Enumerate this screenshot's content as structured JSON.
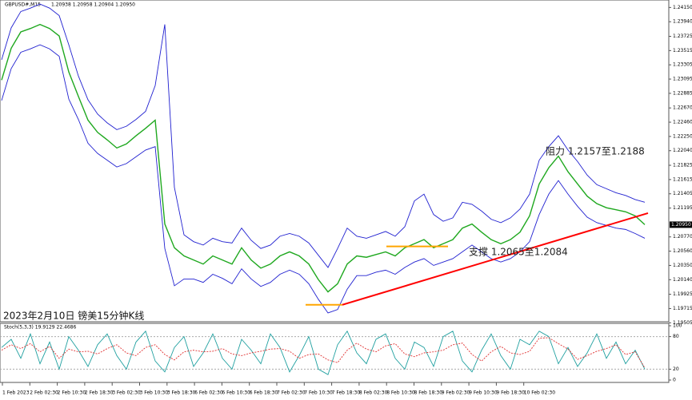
{
  "header": {
    "symbol": "GBPUSD#,M15",
    "quote": "1.20938 1.20958 1.20904 1.20950"
  },
  "chart_data": [
    {
      "type": "line",
      "name": "price",
      "ylim": [
        1.1952,
        1.2426
      ],
      "yticks": [
        {
          "value": 1.2415,
          "label": "1.24150"
        },
        {
          "value": 1.2394,
          "label": "1.23940"
        },
        {
          "value": 1.23725,
          "label": "1.23725"
        },
        {
          "value": 1.23515,
          "label": "1.23515"
        },
        {
          "value": 1.23305,
          "label": "1.23305"
        },
        {
          "value": 1.23095,
          "label": "1.23095"
        },
        {
          "value": 1.22885,
          "label": "1.22885"
        },
        {
          "value": 1.2267,
          "label": "1.22670"
        },
        {
          "value": 1.2246,
          "label": "1.22460"
        },
        {
          "value": 1.2225,
          "label": "1.22250"
        },
        {
          "value": 1.2204,
          "label": "1.22040"
        },
        {
          "value": 1.21825,
          "label": "1.21825"
        },
        {
          "value": 1.21615,
          "label": "1.21615"
        },
        {
          "value": 1.21405,
          "label": "1.21405"
        },
        {
          "value": 1.21195,
          "label": "1.21195"
        },
        {
          "value": 1.2077,
          "label": "1.20770"
        },
        {
          "value": 1.2056,
          "label": "1.20560"
        },
        {
          "value": 1.2035,
          "label": "1.20350"
        },
        {
          "value": 1.2014,
          "label": "1.20140"
        },
        {
          "value": 1.19925,
          "label": "1.19925"
        },
        {
          "value": 1.19715,
          "label": "1.19715"
        },
        {
          "value": 1.19505,
          "label": "1.19505"
        }
      ],
      "current_price": {
        "value": 1.2095,
        "label": "1.20950"
      },
      "x_labels": [
        "1 Feb 2023",
        "2 Feb 02:30",
        "2 Feb 10:30",
        "2 Feb 18:30",
        "3 Feb 02:30",
        "3 Feb 10:30",
        "3 Feb 18:30",
        "6 Feb 02:30",
        "6 Feb 10:30",
        "6 Feb 18:30",
        "7 Feb 02:30",
        "7 Feb 10:30",
        "7 Feb 18:30",
        "8 Feb 02:30",
        "8 Feb 10:30",
        "8 Feb 18:30",
        "9 Feb 02:30",
        "9 Feb 10:30",
        "9 Feb 18:30",
        "10 Feb 02:30"
      ],
      "series": [
        {
          "color": "#1fa81f",
          "values": [
            1.2308,
            1.2355,
            1.2379,
            1.2384,
            1.239,
            1.2384,
            1.2373,
            1.232,
            1.2284,
            1.2249,
            1.2231,
            1.222,
            1.2208,
            1.2214,
            1.2226,
            1.2237,
            1.2249,
            1.2096,
            1.2061,
            1.2049,
            1.2043,
            1.2037,
            1.2049,
            1.2043,
            1.2037,
            1.2061,
            1.2043,
            1.2031,
            1.2037,
            1.2049,
            1.2055,
            1.2049,
            1.2037,
            1.2014,
            1.1996,
            1.2008,
            1.2037,
            1.2049,
            1.2047,
            1.2051,
            1.2055,
            1.2049,
            1.2061,
            1.2067,
            1.2073,
            1.2061,
            1.2067,
            1.2073,
            1.209,
            1.2096,
            1.2084,
            1.2073,
            1.2067,
            1.2073,
            1.2084,
            1.2108,
            1.2155,
            1.2179,
            1.2196,
            1.2173,
            1.2155,
            1.2137,
            1.2126,
            1.212,
            1.2117,
            1.2114,
            1.2108,
            1.2095
          ]
        },
        {
          "color": "#2020d0",
          "values": [
            1.2338,
            1.2385,
            1.2409,
            1.2414,
            1.242,
            1.2414,
            1.2403,
            1.236,
            1.2314,
            1.2279,
            1.2258,
            1.2245,
            1.2235,
            1.224,
            1.225,
            1.2262,
            1.23,
            1.239,
            1.215,
            1.208,
            1.207,
            1.2065,
            1.2075,
            1.207,
            1.2068,
            1.209,
            1.2072,
            1.206,
            1.2065,
            1.2078,
            1.2082,
            1.2078,
            1.2068,
            1.205,
            1.2032,
            1.206,
            1.209,
            1.2078,
            1.2075,
            1.208,
            1.2085,
            1.2078,
            1.2092,
            1.213,
            1.214,
            1.211,
            1.21,
            1.2105,
            1.2128,
            1.2125,
            1.2115,
            1.2103,
            1.2098,
            1.2105,
            1.2118,
            1.214,
            1.219,
            1.221,
            1.2226,
            1.2205,
            1.2188,
            1.2168,
            1.2154,
            1.2148,
            1.2142,
            1.2138,
            1.2132,
            1.2128
          ]
        },
        {
          "color": "#2020d0",
          "values": [
            1.2278,
            1.2325,
            1.2349,
            1.2354,
            1.236,
            1.2354,
            1.2343,
            1.228,
            1.225,
            1.2215,
            1.22,
            1.219,
            1.218,
            1.2185,
            1.2195,
            1.2205,
            1.221,
            1.206,
            1.2005,
            1.2015,
            1.2015,
            1.201,
            1.2022,
            1.2016,
            1.2008,
            1.203,
            1.2015,
            1.2004,
            1.201,
            1.2022,
            1.2028,
            1.2022,
            1.2008,
            1.1985,
            1.1965,
            1.197,
            1.2,
            1.202,
            1.202,
            1.2025,
            1.2028,
            1.2022,
            1.2032,
            1.204,
            1.2045,
            1.2035,
            1.204,
            1.2045,
            1.2055,
            1.2065,
            1.2055,
            1.2045,
            1.204,
            1.2045,
            1.2055,
            1.207,
            1.211,
            1.214,
            1.216,
            1.214,
            1.2122,
            1.2106,
            1.2098,
            1.2094,
            1.209,
            1.2088,
            1.2082,
            1.2075
          ]
        }
      ],
      "hlines": [
        {
          "value": 1.1977,
          "color": "#ffa500"
        },
        {
          "value": 1.2063,
          "color": "#ffa500"
        }
      ],
      "trendline": {
        "values": [
          1.1977,
          1.2112
        ],
        "color": "#ff0000"
      },
      "annotations": [
        "阻力 1.2157至1.2188",
        "支撑 1.2065至1.2084",
        "2023年2月10日 镑美15分钟K线"
      ]
    },
    {
      "type": "line",
      "name": "stochastic",
      "title": "Stoch(5,3,3) 19.9129 22.4686",
      "ylim": [
        0,
        100
      ],
      "yticks": [
        100,
        80,
        20,
        0
      ],
      "series": [
        {
          "color": "#20a0a0",
          "values": [
            60,
            75,
            40,
            85,
            30,
            70,
            20,
            80,
            55,
            25,
            65,
            85,
            45,
            20,
            70,
            90,
            35,
            15,
            60,
            80,
            25,
            50,
            85,
            40,
            20,
            75,
            55,
            30,
            85,
            60,
            15,
            45,
            80,
            20,
            10,
            65,
            90,
            50,
            30,
            75,
            85,
            40,
            20,
            70,
            60,
            25,
            80,
            90,
            35,
            15,
            55,
            85,
            45,
            20,
            75,
            65,
            90,
            80,
            30,
            60,
            25,
            50,
            85,
            40,
            70,
            30,
            55,
            19.9129
          ]
        },
        {
          "color": "#e03030",
          "dashed": true,
          "values": [
            55,
            65,
            58,
            67,
            52,
            62,
            40,
            57,
            52,
            53,
            48,
            58,
            65,
            50,
            45,
            60,
            65,
            47,
            37,
            52,
            55,
            52,
            53,
            58,
            48,
            45,
            50,
            53,
            57,
            58,
            53,
            40,
            47,
            48,
            37,
            32,
            55,
            68,
            57,
            52,
            63,
            67,
            48,
            43,
            50,
            52,
            55,
            65,
            68,
            47,
            35,
            52,
            62,
            50,
            47,
            53,
            77,
            78,
            67,
            57,
            38,
            45,
            53,
            58,
            65,
            47,
            52,
            22.4686
          ]
        }
      ]
    }
  ]
}
